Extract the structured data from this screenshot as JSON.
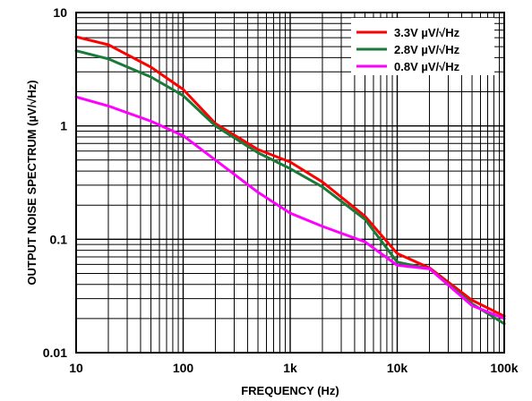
{
  "chart_data": {
    "type": "line",
    "title": "",
    "xlabel": "FREQUENCY (Hz)",
    "ylabel": "OUTPUT NOISE SPECTRUM (µV/√Hz)",
    "xscale": "log",
    "yscale": "log",
    "xlim": [
      10,
      100000
    ],
    "ylim": [
      0.01,
      10
    ],
    "grid": true,
    "legend_position": "top-right",
    "x_tick_labels": [
      "10",
      "100",
      "1k",
      "10k",
      "100k"
    ],
    "y_tick_labels": [
      "10",
      "1",
      "0.1",
      "0.01"
    ],
    "series": [
      {
        "name": "3.3V µV/√Hz",
        "color": "#ff0000",
        "x": [
          10,
          20,
          50,
          100,
          200,
          500,
          1000,
          2000,
          5000,
          10000,
          20000,
          50000,
          100000
        ],
        "y": [
          6.1,
          5.2,
          3.3,
          2.1,
          1.05,
          0.62,
          0.48,
          0.32,
          0.16,
          0.075,
          0.056,
          0.029,
          0.021
        ]
      },
      {
        "name": "2.8V µV/√Hz",
        "color": "#1a7a3a",
        "x": [
          10,
          20,
          50,
          100,
          200,
          500,
          1000,
          2000,
          5000,
          10000,
          20000,
          50000,
          100000
        ],
        "y": [
          4.6,
          3.9,
          2.7,
          1.85,
          1.0,
          0.58,
          0.42,
          0.29,
          0.15,
          0.063,
          0.055,
          0.027,
          0.018
        ]
      },
      {
        "name": "0.8V µV/√Hz",
        "color": "#ff00ff",
        "x": [
          10,
          20,
          50,
          100,
          200,
          500,
          1000,
          2000,
          5000,
          10000,
          20000,
          50000,
          100000
        ],
        "y": [
          1.8,
          1.5,
          1.1,
          0.82,
          0.5,
          0.26,
          0.17,
          0.13,
          0.095,
          0.059,
          0.055,
          0.026,
          0.02
        ]
      }
    ]
  }
}
